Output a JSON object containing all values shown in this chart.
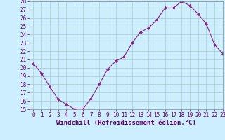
{
  "x": [
    0,
    1,
    2,
    3,
    4,
    5,
    6,
    7,
    8,
    9,
    10,
    11,
    12,
    13,
    14,
    15,
    16,
    17,
    18,
    19,
    20,
    21,
    22,
    23
  ],
  "y": [
    20.5,
    19.3,
    17.7,
    16.2,
    15.6,
    15.0,
    15.0,
    16.3,
    18.0,
    19.8,
    20.8,
    21.3,
    23.0,
    24.3,
    24.8,
    25.8,
    27.2,
    27.2,
    28.0,
    27.5,
    26.5,
    25.3,
    22.8,
    21.7
  ],
  "line_color": "#882288",
  "marker": "D",
  "marker_size": 2.0,
  "bg_color": "#cceeff",
  "grid_color": "#aacccc",
  "xlabel": "Windchill (Refroidissement éolien,°C)",
  "ylim": [
    15,
    28
  ],
  "xlim": [
    -0.5,
    23
  ],
  "yticks": [
    15,
    16,
    17,
    18,
    19,
    20,
    21,
    22,
    23,
    24,
    25,
    26,
    27,
    28
  ],
  "xticks": [
    0,
    1,
    2,
    3,
    4,
    5,
    6,
    7,
    8,
    9,
    10,
    11,
    12,
    13,
    14,
    15,
    16,
    17,
    18,
    19,
    20,
    21,
    22,
    23
  ],
  "tick_fontsize": 5.5,
  "xlabel_fontsize": 6.5,
  "line_width": 0.8,
  "tick_color": "#660066",
  "label_color": "#660066"
}
